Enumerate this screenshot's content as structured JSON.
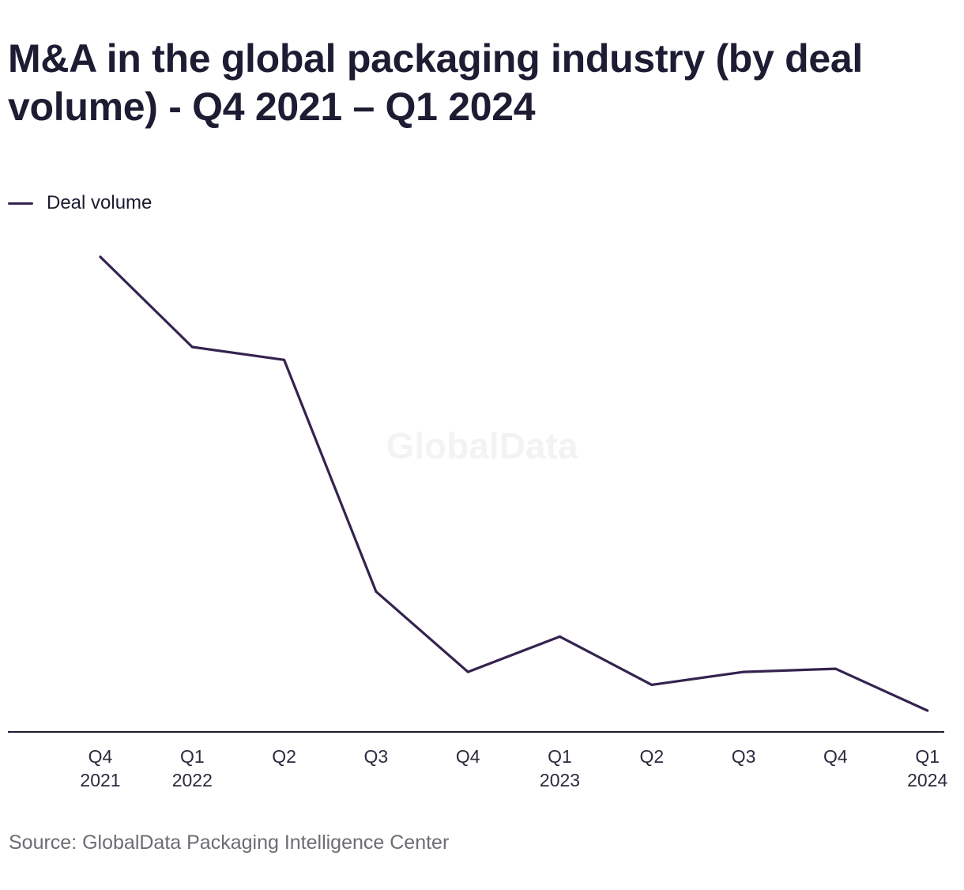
{
  "title": "M&A in the global packaging industry (by deal volume) - Q4 2021 – Q1 2024",
  "source": "Source: GlobalData Packaging Intelligence Center",
  "watermark": "GlobalData",
  "colors": {
    "line": "#35234f",
    "axis": "#1b1b2f",
    "text": "#1b1b2f",
    "source_text": "#6c6c74"
  },
  "chart_data": {
    "type": "line",
    "title": "M&A in the global packaging industry (by deal volume) - Q4 2021 – Q1 2024",
    "xlabel": "",
    "ylabel": "",
    "categories": [
      [
        "Q4",
        "2021"
      ],
      [
        "Q1",
        "2022"
      ],
      [
        "Q2",
        ""
      ],
      [
        "Q3",
        ""
      ],
      [
        "Q4",
        ""
      ],
      [
        "Q1",
        "2023"
      ],
      [
        "Q2",
        ""
      ],
      [
        "Q3",
        ""
      ],
      [
        "Q4",
        ""
      ],
      [
        "Q1",
        "2024"
      ]
    ],
    "series": [
      {
        "name": "Deal volume",
        "values": [
          100,
          86,
          84,
          48,
          35.5,
          41,
          33.5,
          35.5,
          36,
          29.5
        ]
      }
    ],
    "ylim": [
      20,
      108
    ],
    "grid": false,
    "y_axis_labels": false,
    "legend": "top-left"
  }
}
